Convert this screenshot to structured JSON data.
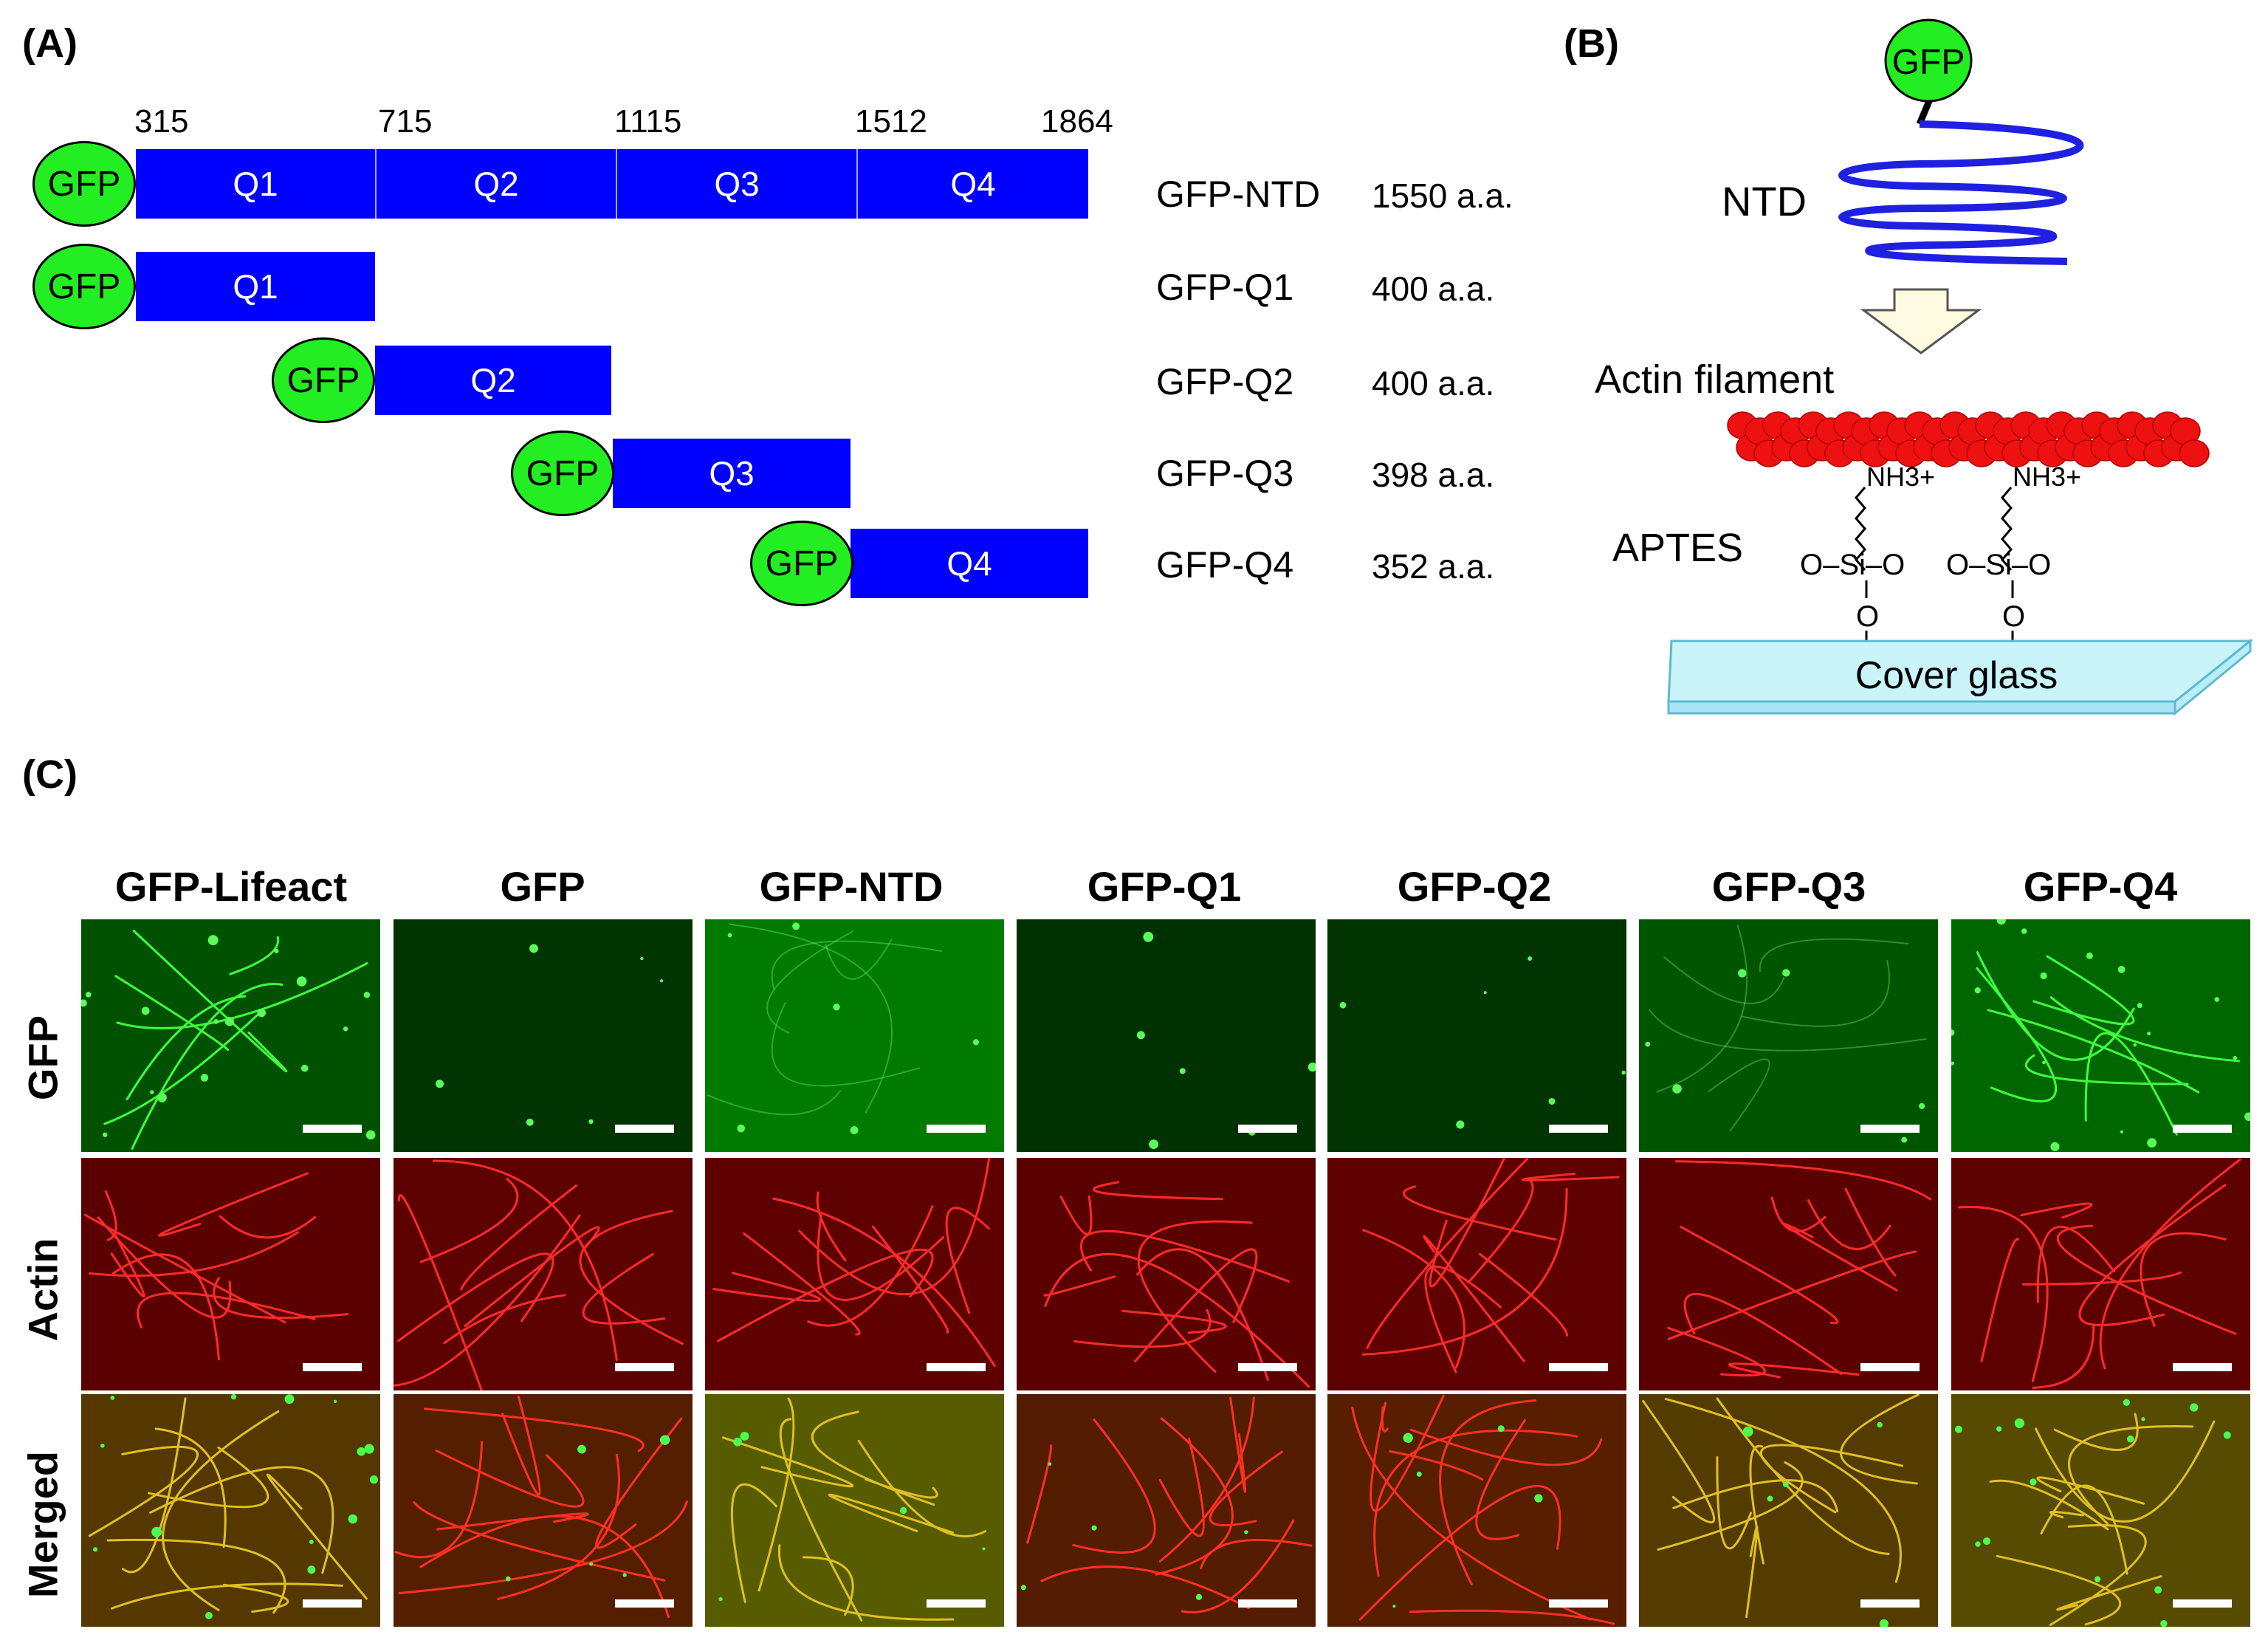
{
  "panels": {
    "a_label": "(A)",
    "b_label": "(B)",
    "c_label": "(C)"
  },
  "panel_a": {
    "boundaries": [
      "315",
      "715",
      "1115",
      "1512",
      "1864"
    ],
    "gfp_label": "GFP",
    "segments": [
      "Q1",
      "Q2",
      "Q3",
      "Q4"
    ],
    "constructs": [
      {
        "name": "GFP-NTD",
        "length": "1550 a.a."
      },
      {
        "name": "GFP-Q1",
        "length": "400 a.a."
      },
      {
        "name": "GFP-Q2",
        "length": "400 a.a."
      },
      {
        "name": "GFP-Q3",
        "length": "398 a.a."
      },
      {
        "name": "GFP-Q4",
        "length": "352 a.a."
      }
    ],
    "colors": {
      "domain": "#0000ff",
      "gfp": "#22ee22"
    }
  },
  "panel_b": {
    "gfp_label": "GFP",
    "ntd_label": "NTD",
    "actin_label": "Actin filament",
    "aptes_label": "APTES",
    "amine_label": "NH3+",
    "silanol_label": "O–Si–O",
    "oxygen_label": "O",
    "glass_label": "Cover glass",
    "colors": {
      "ntd": "#2020e0",
      "actin": "#ee1111",
      "glass": "#c8f4fa",
      "arrow": "#fffbe0"
    }
  },
  "panel_c": {
    "columns": [
      "GFP-Lifeact",
      "GFP",
      "GFP-NTD",
      "GFP-Q1",
      "GFP-Q2",
      "GFP-Q3",
      "GFP-Q4"
    ],
    "rows": [
      "GFP",
      "Actin",
      "Merged"
    ]
  }
}
